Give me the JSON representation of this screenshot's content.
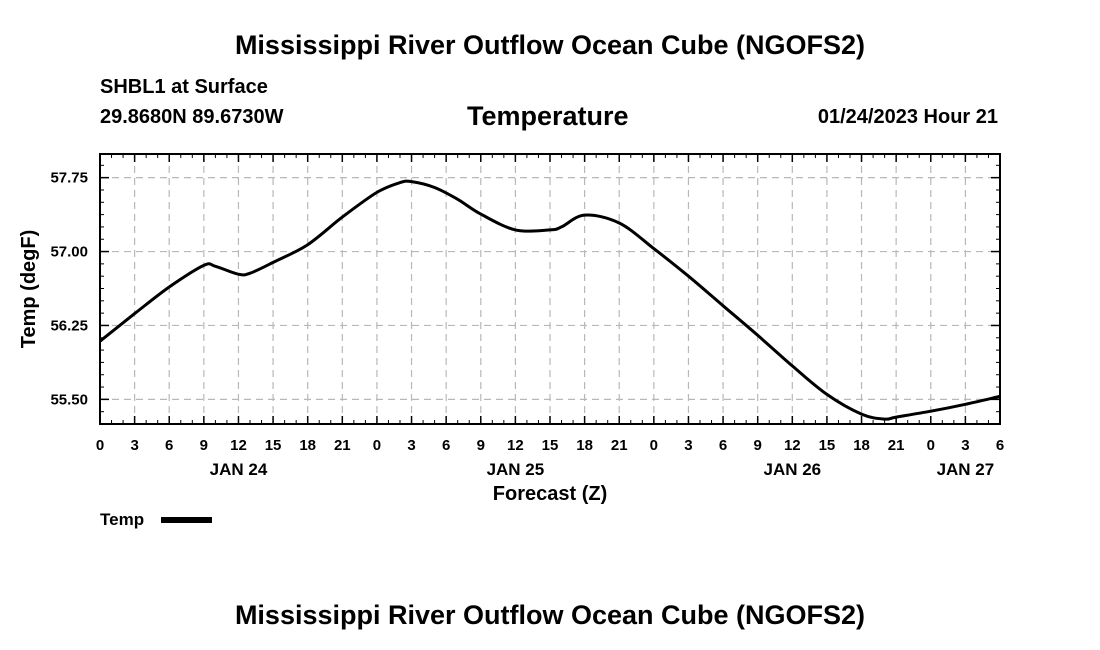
{
  "header": {
    "title": "Mississippi River Outflow Ocean Cube (NGOFS2)",
    "station": "SHBL1 at Surface",
    "coords": "29.8680N  89.6730W",
    "variable": "Temperature",
    "timestamp": "01/24/2023 Hour 21"
  },
  "footer": {
    "title": "Mississippi River Outflow Ocean Cube (NGOFS2)"
  },
  "legend": {
    "label": "Temp"
  },
  "chart_data": {
    "type": "line",
    "title": "Temperature",
    "xlabel": "Forecast (Z)",
    "ylabel": "Temp (degF)",
    "xlim": [
      0,
      78
    ],
    "ylim": [
      55.25,
      57.99
    ],
    "yticks": [
      55.5,
      56.25,
      57.0,
      57.75
    ],
    "ytick_labels": [
      "55.50",
      "56.25",
      "57.00",
      "57.75"
    ],
    "xtick_hours": [
      0,
      3,
      6,
      9,
      12,
      15,
      18,
      21,
      24,
      27,
      30,
      33,
      36,
      39,
      42,
      45,
      48,
      51,
      54,
      57,
      60,
      63,
      66,
      69,
      72,
      75,
      78
    ],
    "xtick_labels": [
      "0",
      "3",
      "6",
      "9",
      "12",
      "15",
      "18",
      "21",
      "0",
      "3",
      "6",
      "9",
      "12",
      "15",
      "18",
      "21",
      "0",
      "3",
      "6",
      "9",
      "12",
      "15",
      "18",
      "21",
      "0",
      "3",
      "6"
    ],
    "date_labels": [
      {
        "hour": 12,
        "text": "JAN 24"
      },
      {
        "hour": 36,
        "text": "JAN 25"
      },
      {
        "hour": 60,
        "text": "JAN 26"
      },
      {
        "hour": 75,
        "text": "JAN 27"
      }
    ],
    "grid": true,
    "series": [
      {
        "name": "Temp",
        "color": "#000000",
        "x": [
          0,
          3,
          6,
          9,
          10,
          12,
          13,
          15,
          18,
          21,
          24,
          26,
          27,
          29,
          31,
          33,
          36,
          39,
          40,
          42,
          45,
          48,
          51,
          54,
          57,
          60,
          63,
          66,
          68,
          69,
          72,
          75,
          78
        ],
        "y": [
          56.09,
          56.37,
          56.64,
          56.86,
          56.85,
          56.77,
          56.78,
          56.89,
          57.07,
          57.35,
          57.6,
          57.7,
          57.71,
          57.65,
          57.53,
          57.38,
          57.22,
          57.22,
          57.25,
          57.37,
          57.29,
          57.03,
          56.75,
          56.45,
          56.15,
          55.84,
          55.55,
          55.35,
          55.3,
          55.32,
          55.38,
          55.45,
          55.53
        ]
      }
    ]
  }
}
